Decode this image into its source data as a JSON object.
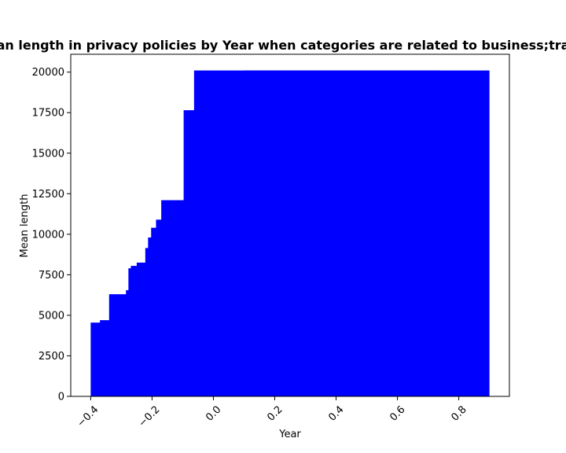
{
  "chart_data": {
    "type": "bar",
    "title": "Mean length in privacy policies by Year when categories are related to business;travel",
    "xlabel": "Year",
    "ylabel": "Mean length",
    "xlim": [
      -0.465,
      0.965
    ],
    "ylim": [
      0,
      21100
    ],
    "xticks": [
      -0.4,
      -0.2,
      0.0,
      0.2,
      0.4,
      0.6,
      0.8
    ],
    "xtick_labels": [
      "−0.4",
      "−0.2",
      "0.0",
      "0.2",
      "0.4",
      "0.6",
      "0.8"
    ],
    "yticks": [
      0,
      2500,
      5000,
      7500,
      10000,
      12500,
      15000,
      17500,
      20000
    ],
    "ytick_labels": [
      "0",
      "2500",
      "5000",
      "7500",
      "10000",
      "12500",
      "15000",
      "17500",
      "20000"
    ],
    "color": "#0000ff",
    "bar_width": 0.8,
    "bars": [
      {
        "x": 0.0,
        "value": 4550
      },
      {
        "x": 0.03,
        "value": 4700
      },
      {
        "x": 0.06,
        "value": 6300
      },
      {
        "x": 0.115,
        "value": 6550
      },
      {
        "x": 0.123,
        "value": 7900
      },
      {
        "x": 0.131,
        "value": 8050
      },
      {
        "x": 0.15,
        "value": 8250
      },
      {
        "x": 0.178,
        "value": 9150
      },
      {
        "x": 0.187,
        "value": 9800
      },
      {
        "x": 0.197,
        "value": 10400
      },
      {
        "x": 0.213,
        "value": 10900
      },
      {
        "x": 0.23,
        "value": 12100
      },
      {
        "x": 0.303,
        "value": 17650
      },
      {
        "x": 0.337,
        "value": 20100
      },
      {
        "x": 0.5,
        "value": 20100
      }
    ]
  }
}
